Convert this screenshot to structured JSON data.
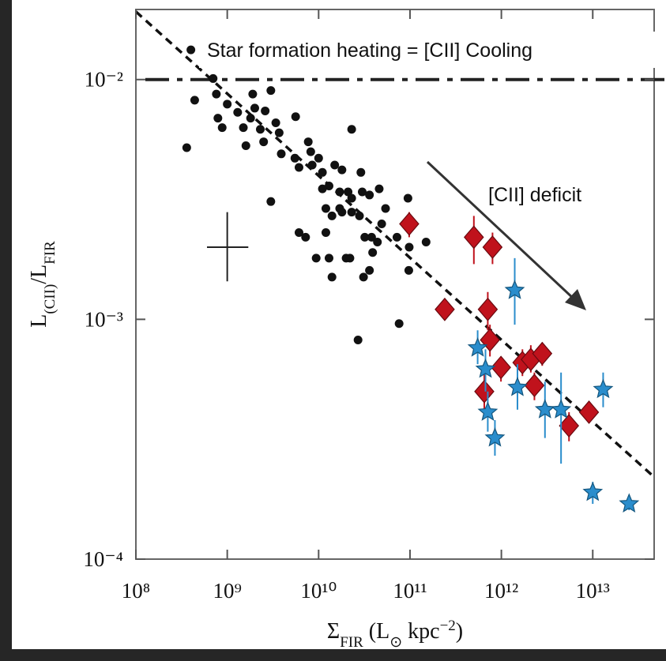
{
  "chart_data": {
    "type": "scatter",
    "xlog": true,
    "ylog": true,
    "xlim": [
      100000000.0,
      47000000000000.0
    ],
    "ylim": [
      0.0001,
      0.0196
    ],
    "xticks": [
      {
        "value": 100000000.0,
        "label": "10⁸"
      },
      {
        "value": 1000000000.0,
        "label": "10⁹"
      },
      {
        "value": 10000000000.0,
        "label": "10¹⁰"
      },
      {
        "value": 100000000000.0,
        "label": "10¹¹"
      },
      {
        "value": 1000000000000.0,
        "label": "10¹²"
      },
      {
        "value": 10000000000000.0,
        "label": "10¹³"
      }
    ],
    "yticks": [
      {
        "value": 0.0001,
        "label": "10⁻⁴"
      },
      {
        "value": 0.001,
        "label": "10⁻³"
      },
      {
        "value": 0.01,
        "label": "10⁻²"
      }
    ],
    "x_label": [
      "Σ",
      "FIR",
      " (L",
      "⊙",
      " kpc",
      "−2",
      ")"
    ],
    "y_label": [
      "L",
      "(CII)",
      "/L",
      "FIR"
    ],
    "annotations": [
      "Star formation heating = [CII] Cooling",
      "[CII] deficit"
    ],
    "hline": 0.01,
    "fit_line": {
      "x": [
        100000000.0,
        47000000000000.0
      ],
      "y": [
        0.0192,
        0.00022
      ]
    },
    "typical_error": {
      "x": 1000000000.0,
      "y": 0.002,
      "x_range": [
        600000000.0,
        1700000000.0
      ],
      "y_range": [
        0.00144,
        0.0028
      ]
    },
    "series": [
      {
        "color": "#111111",
        "marker": "circle",
        "x": [
          400000000.0,
          440000000.0,
          360000000.0,
          700000000.0,
          760000000.0,
          790000000.0,
          1000000000.0,
          880000000.0,
          1300000000.0,
          1500000000.0,
          1800000000.0,
          1900000000.0,
          2000000000.0,
          2600000000.0,
          3000000000.0,
          1600000000.0,
          2300000000.0,
          2500000000.0,
          3400000000.0,
          3700000000.0,
          5600000000.0,
          3900000000.0,
          5500000000.0,
          6100000000.0,
          7700000000.0,
          8200000000.0,
          8500000000.0,
          10000000000.0,
          11000000000.0,
          13000000000.0,
          15000000000.0,
          18000000000.0,
          23000000000.0,
          29000000000.0,
          11000000000.0,
          12000000000.0,
          17000000000.0,
          21000000000.0,
          23000000000.0,
          30000000000.0,
          36000000000.0,
          46000000000.0,
          54000000000.0,
          14000000000.0,
          17000000000.0,
          18000000000.0,
          23000000000.0,
          28000000000.0,
          32000000000.0,
          38000000000.0,
          44000000000.0,
          39000000000.0,
          95000000000.0,
          3000000000.0,
          6100000000.0,
          7200000000.0,
          12000000000.0,
          9400000000.0,
          13000000000.0,
          20000000000.0,
          22000000000.0,
          31000000000.0,
          36000000000.0,
          14000000000.0,
          49000000000.0,
          72000000000.0,
          98000000000.0,
          97000000000.0,
          150000000000.0,
          76000000000.0,
          27000000000.0
        ],
        "values": [
          0.0133,
          0.0082,
          0.0052,
          0.0101,
          0.0087,
          0.0069,
          0.0079,
          0.0063,
          0.0073,
          0.0063,
          0.0069,
          0.0087,
          0.0076,
          0.0074,
          0.009,
          0.0053,
          0.0062,
          0.0055,
          0.0066,
          0.006,
          0.007,
          0.0049,
          0.0047,
          0.0043,
          0.0055,
          0.005,
          0.0044,
          0.0047,
          0.0041,
          0.0036,
          0.0044,
          0.0042,
          0.0062,
          0.0041,
          0.0035,
          0.0029,
          0.0034,
          0.0034,
          0.0032,
          0.0034,
          0.0033,
          0.0035,
          0.0029,
          0.0027,
          0.0029,
          0.0028,
          0.0028,
          0.0027,
          0.0022,
          0.0022,
          0.0021,
          0.0019,
          0.0032,
          0.0031,
          0.0023,
          0.0022,
          0.0023,
          0.0018,
          0.0018,
          0.0018,
          0.0018,
          0.0015,
          0.0016,
          0.0015,
          0.0025,
          0.0022,
          0.002,
          0.0016,
          0.0021,
          0.00096,
          0.00082
        ]
      },
      {
        "color": "#c0121c",
        "marker": "diamond",
        "x": [
          98000000000.0,
          500000000000.0,
          800000000000.0,
          240000000000.0,
          710000000000.0,
          750000000000.0,
          990000000000.0,
          650000000000.0,
          1700000000000.0,
          2100000000000.0,
          2800000000000.0,
          2300000000000.0,
          5500000000000.0,
          9100000000000.0
        ],
        "values": [
          0.0025,
          0.0022,
          0.002,
          0.0011,
          0.0011,
          0.00082,
          0.00063,
          0.0005,
          0.00066,
          0.00068,
          0.00072,
          0.00053,
          0.00036,
          0.00041
        ],
        "y_low": [
          0.0022,
          0.0017,
          0.0017,
          0.001,
          0.0009,
          0.0007,
          0.00055,
          0.00042,
          0.00058,
          0.0006,
          0.00064,
          0.00046,
          0.00031,
          0.00037
        ],
        "y_high": [
          0.0028,
          0.0027,
          0.0023,
          0.0012,
          0.0013,
          0.00095,
          0.0007,
          0.0006,
          0.00075,
          0.00078,
          0.0008,
          0.0006,
          0.00041,
          0.00045
        ]
      },
      {
        "color": "#2a8dcc",
        "marker": "star",
        "x": [
          1400000000000.0,
          550000000000.0,
          670000000000.0,
          1500000000000.0,
          710000000000.0,
          850000000000.0,
          3000000000000.0,
          4500000000000.0,
          13000000000000.0,
          10000000000000.0,
          25000000000000.0
        ],
        "values": [
          0.00132,
          0.00076,
          0.00062,
          0.00052,
          0.00041,
          0.00032,
          0.00042,
          0.00042,
          0.00051,
          0.00019,
          0.00017
        ],
        "y_low": [
          0.00095,
          0.00065,
          0.0005,
          0.00042,
          0.00034,
          0.00027,
          0.00032,
          0.00025,
          0.00043,
          0.00017,
          0.00016
        ],
        "y_high": [
          0.0018,
          0.0009,
          0.00075,
          0.00065,
          0.0005,
          0.00038,
          0.00055,
          0.0006,
          0.0006,
          0.00021,
          0.00018
        ]
      }
    ]
  }
}
